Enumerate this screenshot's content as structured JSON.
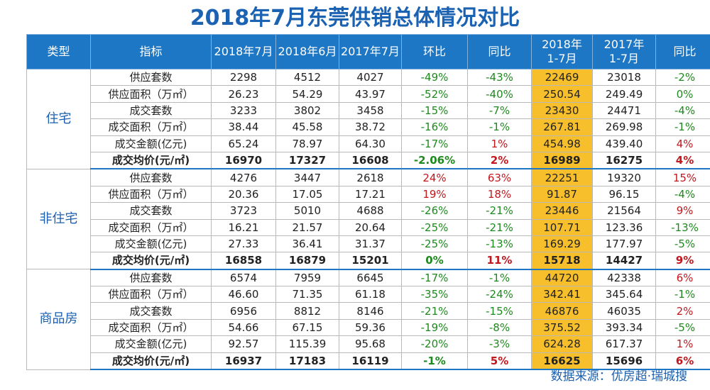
{
  "title": "2018年7月东莞供销总体情况对比",
  "headers": [
    "类型",
    "指标",
    "2018年7月",
    "2018年6月",
    "2017年7月",
    "环比",
    "同比",
    "2018年\n1-7月",
    "2017年\n1-7月",
    "同比"
  ],
  "groups": [
    {
      "type": "住宅",
      "rows": [
        {
          "name": "供应套数",
          "v": [
            "2298",
            "4512",
            "4027",
            "-49%",
            "-43%",
            "22469",
            "23018",
            "-2%"
          ]
        },
        {
          "name": "供应面积（万㎡）",
          "v": [
            "26.23",
            "54.29",
            "43.97",
            "-52%",
            "-40%",
            "250.54",
            "249.49",
            "0%"
          ]
        },
        {
          "name": "成交套数",
          "v": [
            "3233",
            "3802",
            "3458",
            "-15%",
            "-7%",
            "23430",
            "24471",
            "-4%"
          ]
        },
        {
          "name": "成交面积（万㎡）",
          "v": [
            "38.44",
            "45.58",
            "38.72",
            "-16%",
            "-1%",
            "267.81",
            "269.98",
            "-1%"
          ]
        },
        {
          "name": "成交金额(亿元)",
          "v": [
            "65.24",
            "78.97",
            "64.30",
            "-17%",
            "1%",
            "454.98",
            "439.40",
            "4%"
          ]
        },
        {
          "name": "成交均价(元/㎡)",
          "v": [
            "16970",
            "17327",
            "16608",
            "-2.06%",
            "2%",
            "16989",
            "16275",
            "4%"
          ],
          "bold": true
        }
      ]
    },
    {
      "type": "非住宅",
      "rows": [
        {
          "name": "供应套数",
          "v": [
            "4276",
            "3447",
            "2618",
            "24%",
            "63%",
            "22251",
            "19320",
            "15%"
          ]
        },
        {
          "name": "供应面积（万㎡）",
          "v": [
            "20.36",
            "17.05",
            "17.21",
            "19%",
            "18%",
            "91.87",
            "96.15",
            "-4%"
          ]
        },
        {
          "name": "成交套数",
          "v": [
            "3723",
            "5010",
            "4688",
            "-26%",
            "-21%",
            "23446",
            "21564",
            "9%"
          ]
        },
        {
          "name": "成交面积（万㎡）",
          "v": [
            "16.21",
            "21.57",
            "20.64",
            "-25%",
            "-21%",
            "107.71",
            "123.36",
            "-13%"
          ]
        },
        {
          "name": "成交金额(亿元)",
          "v": [
            "27.33",
            "36.41",
            "31.37",
            "-25%",
            "-13%",
            "169.29",
            "177.97",
            "-5%"
          ]
        },
        {
          "name": "成交均价(元/㎡)",
          "v": [
            "16858",
            "16879",
            "15201",
            "0%",
            "11%",
            "15718",
            "14427",
            "9%"
          ],
          "bold": true
        }
      ]
    },
    {
      "type": "商品房",
      "rows": [
        {
          "name": "供应套数",
          "v": [
            "6574",
            "7959",
            "6645",
            "-17%",
            "-1%",
            "44720",
            "42338",
            "6%"
          ]
        },
        {
          "name": "供应面积（万㎡）",
          "v": [
            "46.60",
            "71.35",
            "61.18",
            "-35%",
            "-24%",
            "342.41",
            "345.64",
            "-1%"
          ]
        },
        {
          "name": "成交套数",
          "v": [
            "6956",
            "8812",
            "8146",
            "-21%",
            "-15%",
            "46876",
            "46035",
            "2%"
          ]
        },
        {
          "name": "成交面积（万㎡）",
          "v": [
            "54.66",
            "67.15",
            "59.36",
            "-19%",
            "-8%",
            "375.52",
            "393.34",
            "-5%"
          ]
        },
        {
          "name": "成交金额(亿元)",
          "v": [
            "92.57",
            "115.39",
            "95.68",
            "-20%",
            "-3%",
            "624.28",
            "617.37",
            "1%"
          ]
        },
        {
          "name": "成交均价(元/㎡)",
          "v": [
            "16937",
            "17183",
            "16119",
            "-1%",
            "5%",
            "16625",
            "15696",
            "6%"
          ],
          "bold": true
        }
      ]
    }
  ],
  "source": "数据来源：优房超·瑞城搜",
  "colors": {
    "header_bg": "#1d77c4",
    "highlight": "#f6bf2b",
    "negative": "#1e8a1e",
    "positive": "#c0181e",
    "title": "#1b62b3"
  }
}
